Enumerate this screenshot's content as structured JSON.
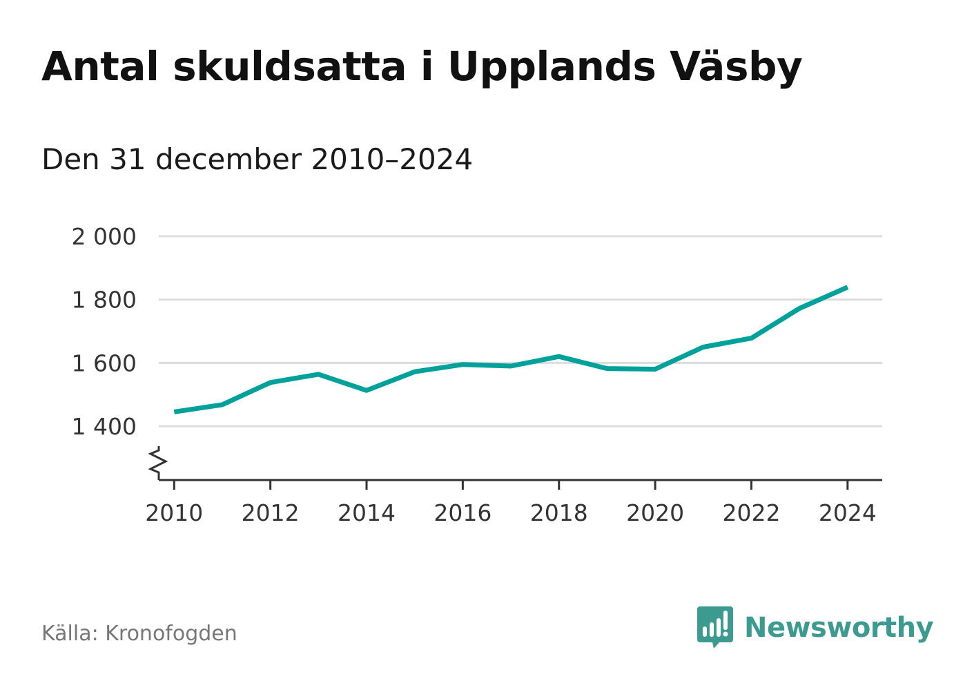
{
  "header": {
    "title": "Antal skuldsatta i Upplands Väsby",
    "subtitle": "Den 31 december 2010–2024"
  },
  "footer": {
    "source": "Källa: Kronofogden",
    "brand": "Newsworthy",
    "brand_color": "#3d9a91"
  },
  "chart_data": {
    "type": "line",
    "title": "Antal skuldsatta i Upplands Väsby",
    "subtitle": "Den 31 december 2010–2024",
    "xlabel": "",
    "ylabel": "",
    "x": [
      2010,
      2011,
      2012,
      2013,
      2014,
      2015,
      2016,
      2017,
      2018,
      2019,
      2020,
      2021,
      2022,
      2023,
      2024
    ],
    "series": [
      {
        "name": "Antal skuldsatta",
        "color": "#00a19a",
        "values": [
          1445,
          1468,
          1538,
          1564,
          1513,
          1572,
          1595,
          1590,
          1620,
          1582,
          1580,
          1650,
          1678,
          1772,
          1839
        ]
      }
    ],
    "xticks": [
      2010,
      2012,
      2014,
      2016,
      2018,
      2020,
      2022,
      2024
    ],
    "xtick_labels": [
      "2010",
      "2012",
      "2014",
      "2016",
      "2018",
      "2020",
      "2022",
      "2024"
    ],
    "yticks": [
      1400,
      1600,
      1800,
      2000
    ],
    "ytick_labels": [
      "1 400",
      "1 600",
      "1 800",
      "2 000"
    ],
    "xlim": [
      2009.68,
      2024.72
    ],
    "ylim": [
      1230,
      2000
    ],
    "grid": true,
    "axis_break": true,
    "gridline_color": "#dddddd",
    "axis_color": "#333333"
  }
}
